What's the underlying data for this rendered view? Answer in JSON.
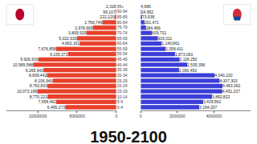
{
  "chart_data": [
    {
      "type": "bar",
      "title": "1950-2100",
      "orientation": "horizontal",
      "data_labels": true,
      "color": "#e8412c",
      "categories": [
        "0-4",
        "5-9",
        "10-14",
        "15-19",
        "20-24",
        "25-29",
        "30-34",
        "35-39",
        "40-44",
        "45-49",
        "50-54",
        "55-59",
        "60-64",
        "65-69",
        "70-74",
        "75-79",
        "80-84",
        "85-89",
        "90-94",
        "95+"
      ],
      "values": [
        6495273,
        7658462,
        8770221,
        10073196,
        8762803,
        8106940,
        8839442,
        9265943,
        10589588,
        9926919,
        6155372,
        7676858,
        4663161,
        5022630,
        3809529,
        2978665,
        1756749,
        222120,
        95107,
        2318
      ],
      "value_labels": [
        "6,495,273",
        "7,658,462",
        "8,770,221",
        "10,073,196",
        "8,762,803",
        "8,106,940",
        "8,839,442",
        "9,265,943",
        "10,589,588",
        "9,926,919",
        "6,155,372",
        "7,676,858",
        "4,663,161",
        "5,022,630",
        "3,809,529",
        "2,978,665",
        "1,756,749",
        "222,120",
        "95,107",
        "2,318"
      ],
      "xlim": [
        0,
        14000000
      ],
      "xticks": [
        0,
        5000000,
        10000000
      ]
    },
    {
      "type": "bar",
      "orientation": "horizontal",
      "data_labels": true,
      "color": "#3b3fd8",
      "categories": [
        "0-4",
        "5-9",
        "10-14",
        "15-19",
        "20-24",
        "25-29",
        "30-34",
        "35-39",
        "40-44",
        "45-49",
        "50-54",
        "55-59",
        "60-64",
        "65-69",
        "70-74",
        "75-79",
        "80-84",
        "85-89",
        "90-94",
        "95+"
      ],
      "values": [
        3194207,
        3409562,
        3892822,
        4451237,
        4463362,
        4307303,
        4040220,
        2090453,
        2535396,
        2118250,
        1873063,
        1358411,
        1140861,
        933011,
        609731,
        284456,
        201471,
        73938,
        24952,
        4686
      ],
      "value_labels": [
        "3,194,207",
        "3,409,562",
        "3,892,822",
        "4,451,237",
        "4,463,362",
        "4,307,303",
        "4,040,220",
        "2,090,453",
        "2,535,396",
        "2,118,250",
        "1,873,063",
        "1,358,411",
        "1,140,861",
        "933,011",
        "609,731",
        "284,456",
        "201,471",
        "73,938",
        "24,952",
        "4,686"
      ],
      "xlim": [
        0,
        6000000
      ],
      "xticks": [
        0,
        2000000,
        4000000
      ]
    }
  ]
}
